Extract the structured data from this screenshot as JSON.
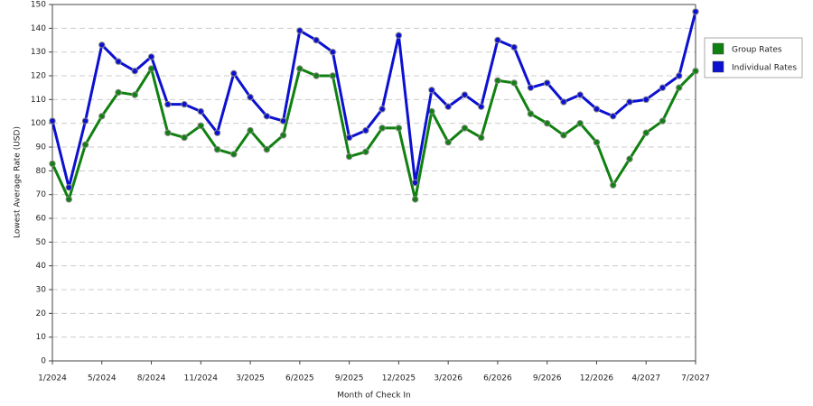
{
  "chart_data": {
    "type": "line",
    "x_label": "Month of Check In",
    "y_label": "Lowest Average Rate (USD)",
    "categories": [
      "1/2024",
      null,
      null,
      "5/2024",
      null,
      null,
      "8/2024",
      null,
      null,
      "11/2024",
      null,
      null,
      "3/2025",
      null,
      null,
      "6/2025",
      null,
      null,
      "9/2025",
      null,
      null,
      "12/2025",
      null,
      null,
      "3/2026",
      null,
      null,
      "6/2026",
      null,
      null,
      "9/2026",
      null,
      null,
      "12/2026",
      null,
      null,
      "4/2027",
      null,
      null,
      "7/2027"
    ],
    "series": [
      {
        "name": "Group Rates",
        "color": "#108010",
        "values": [
          83,
          68,
          91,
          103,
          113,
          112,
          123,
          96,
          94,
          99,
          89,
          87,
          97,
          89,
          95,
          123,
          120,
          120,
          86,
          88,
          98,
          98,
          68,
          105,
          92,
          98,
          94,
          118,
          117,
          104,
          100,
          95,
          100,
          92,
          74,
          85,
          96,
          101,
          115,
          122
        ]
      },
      {
        "name": "Individual Rates",
        "color": "#0c10d0",
        "values": [
          101,
          73,
          101,
          133,
          126,
          122,
          128,
          108,
          108,
          105,
          96,
          121,
          111,
          103,
          101,
          139,
          135,
          130,
          94,
          97,
          106,
          137,
          75,
          114,
          107,
          112,
          107,
          135,
          132,
          115,
          117,
          109,
          112,
          106,
          103,
          109,
          110,
          115,
          120,
          147
        ]
      }
    ],
    "ylim": [
      0,
      150
    ],
    "yticks": [
      0,
      10,
      20,
      30,
      40,
      50,
      60,
      70,
      80,
      90,
      100,
      110,
      120,
      130,
      140,
      150
    ],
    "grid": true,
    "legend": "top-right"
  }
}
